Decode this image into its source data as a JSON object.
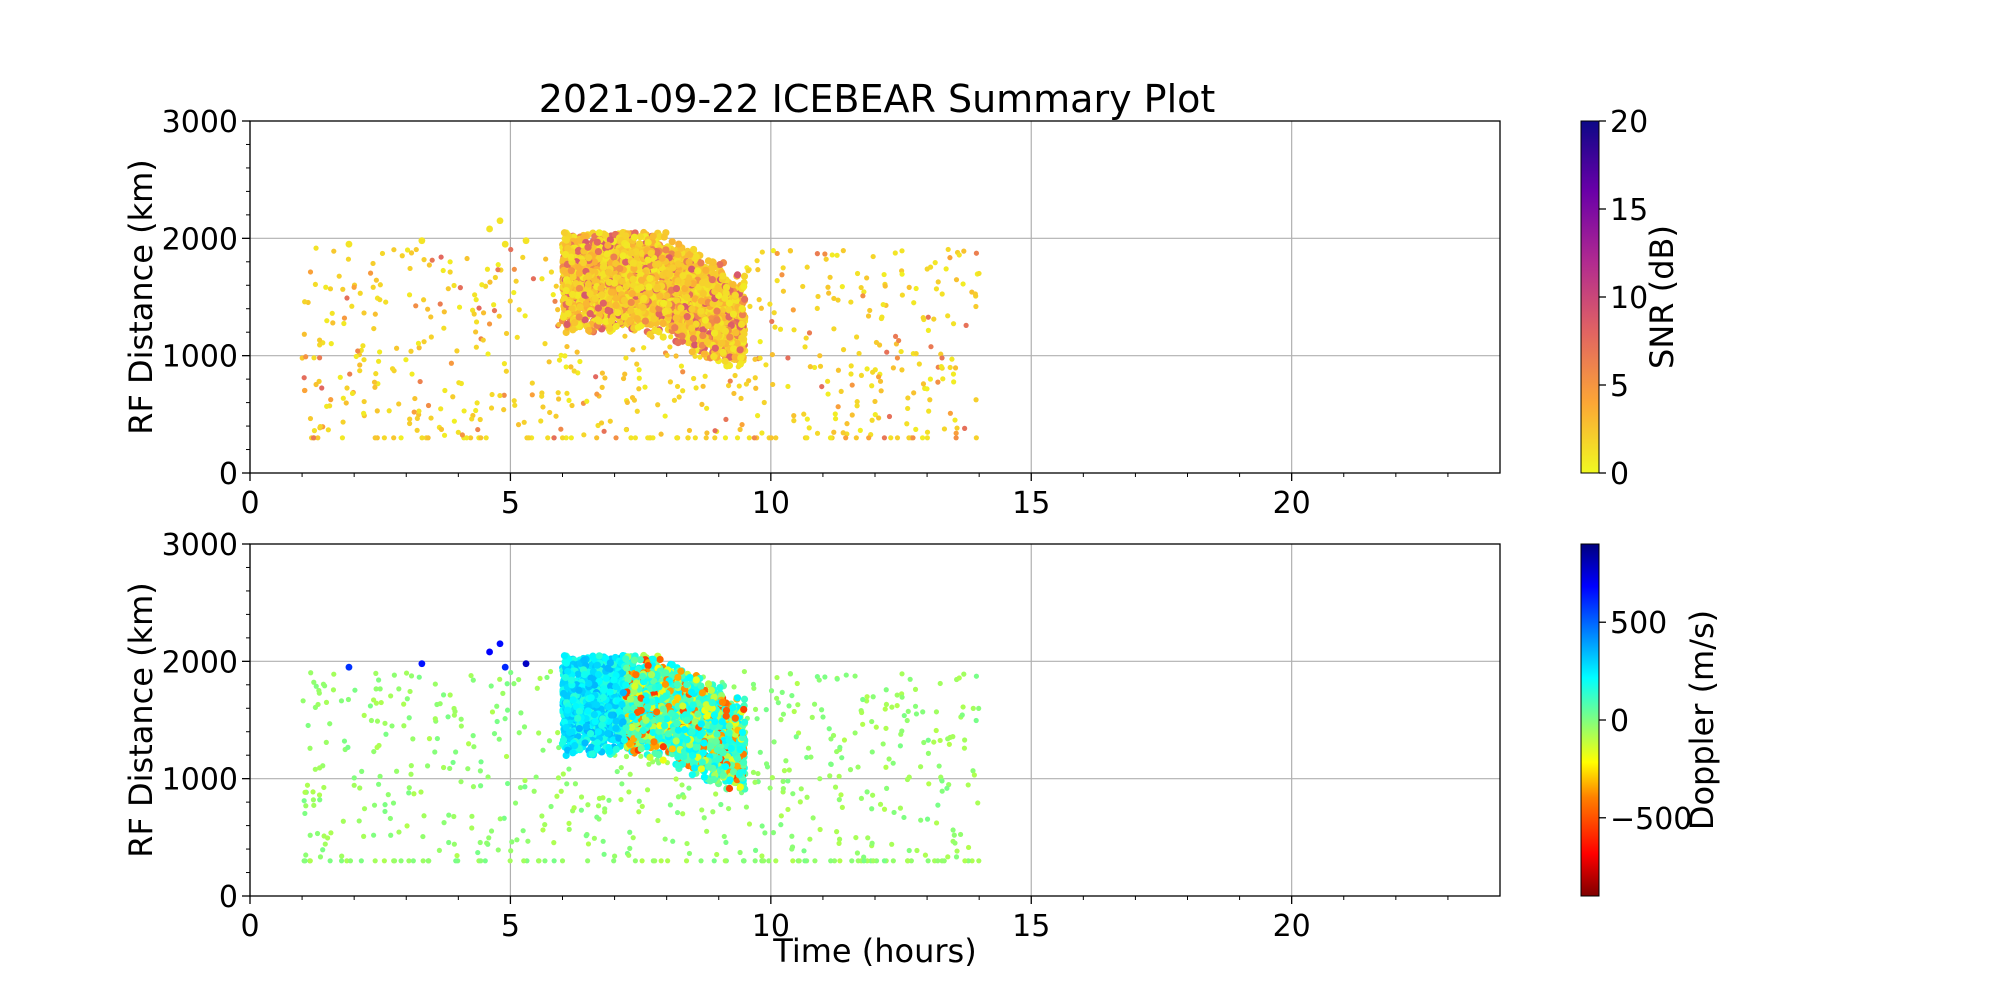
{
  "chart_data": [
    {
      "type": "scatter",
      "title": "2021-09-22 ICEBEAR Summary Plot",
      "xlabel": "",
      "ylabel": "RF Distance (km)",
      "xlim": [
        0,
        24
      ],
      "ylim": [
        0,
        3000
      ],
      "xticks": [
        "0",
        "5",
        "10",
        "15",
        "20"
      ],
      "yticks": [
        "0",
        "1000",
        "2000",
        "3000"
      ],
      "grid": true,
      "colorbar": {
        "label": "SNR (dB)",
        "range": [
          0,
          20
        ],
        "ticks": [
          "0",
          "5",
          "10",
          "15",
          "20"
        ],
        "colormap": "plasma_r",
        "colors": [
          "#f0f921",
          "#fca636",
          "#e16462",
          "#b12a90",
          "#6a00a8",
          "#0d0887"
        ]
      },
      "clusters": [
        {
          "t_range": [
            6.0,
            9.5
          ],
          "range_km": [
            900,
            2050
          ],
          "value": "0-8"
        },
        {
          "t_range": [
            1.0,
            14.0
          ],
          "range_km": [
            300,
            2000
          ],
          "value": "0-6",
          "note_type": "scattered"
        }
      ]
    },
    {
      "type": "scatter",
      "title": "",
      "xlabel": "Time (hours)",
      "ylabel": "RF Distance (km)",
      "xlim": [
        0,
        24
      ],
      "ylim": [
        0,
        3000
      ],
      "xticks": [
        "0",
        "5",
        "10",
        "15",
        "20"
      ],
      "yticks": [
        "0",
        "1000",
        "2000",
        "3000"
      ],
      "grid": true,
      "colorbar": {
        "label": "Doppler (m/s)",
        "range": [
          -900,
          900
        ],
        "ticks": [
          "−500",
          "0",
          "500"
        ],
        "tick_values": [
          -500,
          0,
          500
        ],
        "colormap": "jet_r",
        "colors": [
          "#7f0000",
          "#ff0000",
          "#ff8000",
          "#ffff00",
          "#80ff80",
          "#00ffff",
          "#0080ff",
          "#0000ff",
          "#00007f"
        ]
      },
      "clusters": [
        {
          "t_range": [
            6.0,
            9.5
          ],
          "range_km": [
            900,
            2050
          ],
          "value": "-700 to 450"
        },
        {
          "t_range": [
            1.0,
            14.0
          ],
          "range_km": [
            300,
            2000
          ],
          "value": "about -100"
        }
      ]
    }
  ]
}
